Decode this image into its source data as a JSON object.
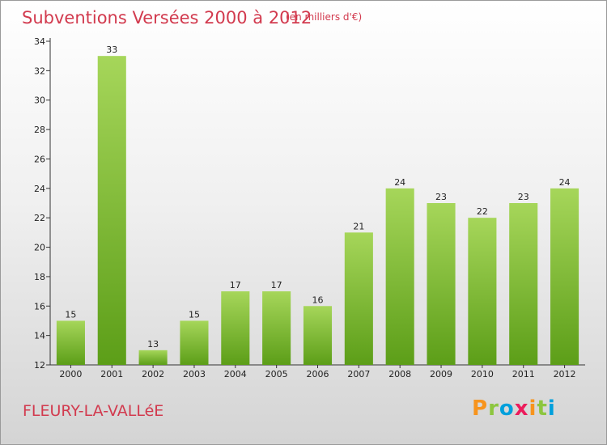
{
  "header": {
    "title": "Subventions Versées 2000 à 2012",
    "unit_note": "(en milliers d'€)"
  },
  "footer": {
    "place": "FLEURY-LA-VALLéE",
    "brand": "Proxiti",
    "brand_colors": [
      "#f7941d",
      "#8dc63f",
      "#00a0dc",
      "#ec1c5c",
      "#f7941d",
      "#8dc63f",
      "#00a0dc"
    ]
  },
  "colors": {
    "bar_light": "#a6d65a",
    "bar_dark": "#5c9e18",
    "title": "#d23a4e"
  },
  "chart_data": {
    "type": "bar",
    "categories": [
      "2000",
      "2001",
      "2002",
      "2003",
      "2004",
      "2005",
      "2006",
      "2007",
      "2008",
      "2009",
      "2010",
      "2011",
      "2012"
    ],
    "values": [
      15,
      33,
      13,
      15,
      17,
      17,
      16,
      21,
      24,
      23,
      22,
      23,
      24
    ],
    "ylim": [
      12,
      34
    ],
    "yticks": [
      12,
      14,
      16,
      18,
      20,
      22,
      24,
      26,
      28,
      30,
      32,
      34
    ],
    "data_labels": true,
    "grid": false
  }
}
